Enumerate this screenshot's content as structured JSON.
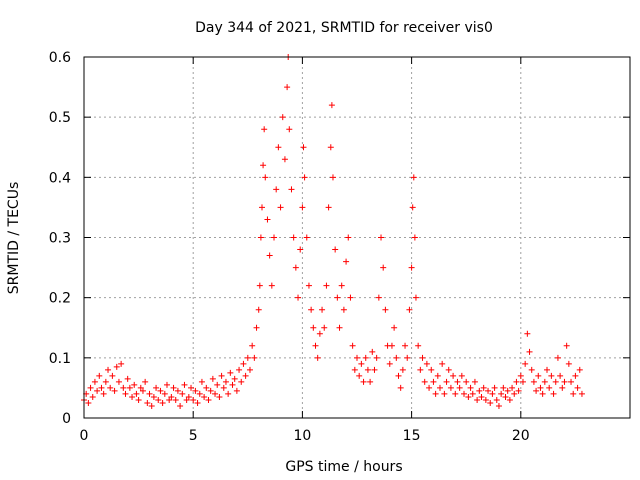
{
  "chart_data": {
    "type": "scatter",
    "title": "Day 344 of 2021, SRMTID for receiver vis0",
    "xlabel": "GPS time / hours",
    "ylabel": "SRMTID / TECUs",
    "xlim": [
      0,
      25
    ],
    "ylim": [
      0,
      0.6
    ],
    "x_ticks": [
      0,
      5,
      10,
      15,
      20
    ],
    "x_tick_labels": [
      "0",
      "5",
      "10",
      "15",
      "20"
    ],
    "y_ticks": [
      0,
      0.1,
      0.2,
      0.3,
      0.4,
      0.5,
      0.6
    ],
    "y_tick_labels": [
      "0",
      "0.1",
      "0.2",
      "0.3",
      "0.4",
      "0.5",
      "0.6"
    ],
    "grid": true,
    "marker": "+",
    "color": "#ff0000",
    "series": [
      {
        "name": "SRMTID",
        "points": [
          [
            0.0,
            0.03
          ],
          [
            0.1,
            0.04
          ],
          [
            0.2,
            0.025
          ],
          [
            0.3,
            0.05
          ],
          [
            0.4,
            0.035
          ],
          [
            0.5,
            0.06
          ],
          [
            0.6,
            0.045
          ],
          [
            0.7,
            0.07
          ],
          [
            0.8,
            0.05
          ],
          [
            0.9,
            0.04
          ],
          [
            1.0,
            0.06
          ],
          [
            1.1,
            0.08
          ],
          [
            1.2,
            0.05
          ],
          [
            1.3,
            0.07
          ],
          [
            1.4,
            0.045
          ],
          [
            1.5,
            0.085
          ],
          [
            1.6,
            0.06
          ],
          [
            1.7,
            0.09
          ],
          [
            1.8,
            0.05
          ],
          [
            1.9,
            0.04
          ],
          [
            2.0,
            0.065
          ],
          [
            2.1,
            0.05
          ],
          [
            2.2,
            0.035
          ],
          [
            2.3,
            0.055
          ],
          [
            2.4,
            0.04
          ],
          [
            2.5,
            0.03
          ],
          [
            2.6,
            0.05
          ],
          [
            2.7,
            0.045
          ],
          [
            2.8,
            0.06
          ],
          [
            2.9,
            0.025
          ],
          [
            3.0,
            0.04
          ],
          [
            3.1,
            0.02
          ],
          [
            3.2,
            0.035
          ],
          [
            3.3,
            0.05
          ],
          [
            3.4,
            0.03
          ],
          [
            3.5,
            0.045
          ],
          [
            3.6,
            0.025
          ],
          [
            3.7,
            0.04
          ],
          [
            3.8,
            0.055
          ],
          [
            3.9,
            0.03
          ],
          [
            4.0,
            0.035
          ],
          [
            4.1,
            0.05
          ],
          [
            4.2,
            0.03
          ],
          [
            4.3,
            0.045
          ],
          [
            4.4,
            0.02
          ],
          [
            4.5,
            0.04
          ],
          [
            4.6,
            0.055
          ],
          [
            4.7,
            0.03
          ],
          [
            4.8,
            0.035
          ],
          [
            4.9,
            0.05
          ],
          [
            5.0,
            0.03
          ],
          [
            5.1,
            0.045
          ],
          [
            5.2,
            0.025
          ],
          [
            5.3,
            0.04
          ],
          [
            5.4,
            0.06
          ],
          [
            5.5,
            0.035
          ],
          [
            5.6,
            0.05
          ],
          [
            5.7,
            0.03
          ],
          [
            5.8,
            0.045
          ],
          [
            5.9,
            0.065
          ],
          [
            6.0,
            0.04
          ],
          [
            6.1,
            0.055
          ],
          [
            6.2,
            0.035
          ],
          [
            6.3,
            0.07
          ],
          [
            6.4,
            0.05
          ],
          [
            6.5,
            0.06
          ],
          [
            6.6,
            0.04
          ],
          [
            6.7,
            0.075
          ],
          [
            6.8,
            0.055
          ],
          [
            6.9,
            0.065
          ],
          [
            7.0,
            0.045
          ],
          [
            7.1,
            0.08
          ],
          [
            7.2,
            0.06
          ],
          [
            7.3,
            0.09
          ],
          [
            7.4,
            0.07
          ],
          [
            7.5,
            0.1
          ],
          [
            7.6,
            0.08
          ],
          [
            7.7,
            0.12
          ],
          [
            7.8,
            0.1
          ],
          [
            7.9,
            0.15
          ],
          [
            8.0,
            0.18
          ],
          [
            8.05,
            0.22
          ],
          [
            8.1,
            0.3
          ],
          [
            8.15,
            0.35
          ],
          [
            8.2,
            0.42
          ],
          [
            8.25,
            0.48
          ],
          [
            8.3,
            0.4
          ],
          [
            8.4,
            0.33
          ],
          [
            8.5,
            0.27
          ],
          [
            8.6,
            0.22
          ],
          [
            8.7,
            0.3
          ],
          [
            8.8,
            0.38
          ],
          [
            8.9,
            0.45
          ],
          [
            9.0,
            0.35
          ],
          [
            9.1,
            0.5
          ],
          [
            9.2,
            0.43
          ],
          [
            9.3,
            0.55
          ],
          [
            9.35,
            0.6
          ],
          [
            9.4,
            0.48
          ],
          [
            9.5,
            0.38
          ],
          [
            9.6,
            0.3
          ],
          [
            9.7,
            0.25
          ],
          [
            9.8,
            0.2
          ],
          [
            9.9,
            0.28
          ],
          [
            10.0,
            0.35
          ],
          [
            10.05,
            0.45
          ],
          [
            10.1,
            0.4
          ],
          [
            10.2,
            0.3
          ],
          [
            10.3,
            0.22
          ],
          [
            10.4,
            0.18
          ],
          [
            10.5,
            0.15
          ],
          [
            10.6,
            0.12
          ],
          [
            10.7,
            0.1
          ],
          [
            10.8,
            0.14
          ],
          [
            10.9,
            0.18
          ],
          [
            11.0,
            0.15
          ],
          [
            11.1,
            0.22
          ],
          [
            11.2,
            0.35
          ],
          [
            11.3,
            0.45
          ],
          [
            11.35,
            0.52
          ],
          [
            11.4,
            0.4
          ],
          [
            11.5,
            0.28
          ],
          [
            11.6,
            0.2
          ],
          [
            11.7,
            0.15
          ],
          [
            11.8,
            0.22
          ],
          [
            11.9,
            0.18
          ],
          [
            12.0,
            0.26
          ],
          [
            12.1,
            0.3
          ],
          [
            12.2,
            0.2
          ],
          [
            12.3,
            0.12
          ],
          [
            12.4,
            0.08
          ],
          [
            12.5,
            0.1
          ],
          [
            12.6,
            0.07
          ],
          [
            12.7,
            0.09
          ],
          [
            12.8,
            0.06
          ],
          [
            12.9,
            0.1
          ],
          [
            13.0,
            0.08
          ],
          [
            13.1,
            0.06
          ],
          [
            13.2,
            0.11
          ],
          [
            13.3,
            0.08
          ],
          [
            13.4,
            0.1
          ],
          [
            13.5,
            0.2
          ],
          [
            13.6,
            0.3
          ],
          [
            13.7,
            0.25
          ],
          [
            13.8,
            0.18
          ],
          [
            13.9,
            0.12
          ],
          [
            14.0,
            0.09
          ],
          [
            14.1,
            0.12
          ],
          [
            14.2,
            0.15
          ],
          [
            14.3,
            0.1
          ],
          [
            14.4,
            0.07
          ],
          [
            14.5,
            0.05
          ],
          [
            14.6,
            0.08
          ],
          [
            14.7,
            0.12
          ],
          [
            14.8,
            0.1
          ],
          [
            14.9,
            0.18
          ],
          [
            15.0,
            0.25
          ],
          [
            15.05,
            0.35
          ],
          [
            15.1,
            0.4
          ],
          [
            15.15,
            0.3
          ],
          [
            15.2,
            0.2
          ],
          [
            15.3,
            0.12
          ],
          [
            15.4,
            0.08
          ],
          [
            15.5,
            0.1
          ],
          [
            15.6,
            0.06
          ],
          [
            15.7,
            0.09
          ],
          [
            15.8,
            0.05
          ],
          [
            15.9,
            0.08
          ],
          [
            16.0,
            0.06
          ],
          [
            16.1,
            0.04
          ],
          [
            16.2,
            0.07
          ],
          [
            16.3,
            0.05
          ],
          [
            16.4,
            0.09
          ],
          [
            16.5,
            0.04
          ],
          [
            16.6,
            0.06
          ],
          [
            16.7,
            0.08
          ],
          [
            16.8,
            0.05
          ],
          [
            16.9,
            0.07
          ],
          [
            17.0,
            0.04
          ],
          [
            17.1,
            0.06
          ],
          [
            17.2,
            0.05
          ],
          [
            17.3,
            0.07
          ],
          [
            17.4,
            0.04
          ],
          [
            17.5,
            0.06
          ],
          [
            17.6,
            0.035
          ],
          [
            17.7,
            0.05
          ],
          [
            17.8,
            0.04
          ],
          [
            17.9,
            0.06
          ],
          [
            18.0,
            0.03
          ],
          [
            18.1,
            0.045
          ],
          [
            18.2,
            0.035
          ],
          [
            18.3,
            0.05
          ],
          [
            18.4,
            0.03
          ],
          [
            18.5,
            0.045
          ],
          [
            18.6,
            0.025
          ],
          [
            18.7,
            0.04
          ],
          [
            18.8,
            0.05
          ],
          [
            18.9,
            0.03
          ],
          [
            19.0,
            0.02
          ],
          [
            19.1,
            0.04
          ],
          [
            19.2,
            0.05
          ],
          [
            19.3,
            0.035
          ],
          [
            19.4,
            0.045
          ],
          [
            19.5,
            0.03
          ],
          [
            19.6,
            0.05
          ],
          [
            19.7,
            0.04
          ],
          [
            19.8,
            0.06
          ],
          [
            19.9,
            0.045
          ],
          [
            20.0,
            0.07
          ],
          [
            20.1,
            0.06
          ],
          [
            20.2,
            0.09
          ],
          [
            20.3,
            0.14
          ],
          [
            20.4,
            0.11
          ],
          [
            20.5,
            0.08
          ],
          [
            20.6,
            0.06
          ],
          [
            20.7,
            0.045
          ],
          [
            20.8,
            0.07
          ],
          [
            20.9,
            0.05
          ],
          [
            21.0,
            0.04
          ],
          [
            21.1,
            0.06
          ],
          [
            21.2,
            0.08
          ],
          [
            21.3,
            0.05
          ],
          [
            21.4,
            0.07
          ],
          [
            21.5,
            0.04
          ],
          [
            21.6,
            0.06
          ],
          [
            21.7,
            0.1
          ],
          [
            21.8,
            0.07
          ],
          [
            21.9,
            0.05
          ],
          [
            22.0,
            0.06
          ],
          [
            22.1,
            0.12
          ],
          [
            22.2,
            0.09
          ],
          [
            22.3,
            0.06
          ],
          [
            22.4,
            0.04
          ],
          [
            22.5,
            0.07
          ],
          [
            22.6,
            0.05
          ],
          [
            22.7,
            0.08
          ],
          [
            22.8,
            0.04
          ]
        ]
      }
    ]
  }
}
